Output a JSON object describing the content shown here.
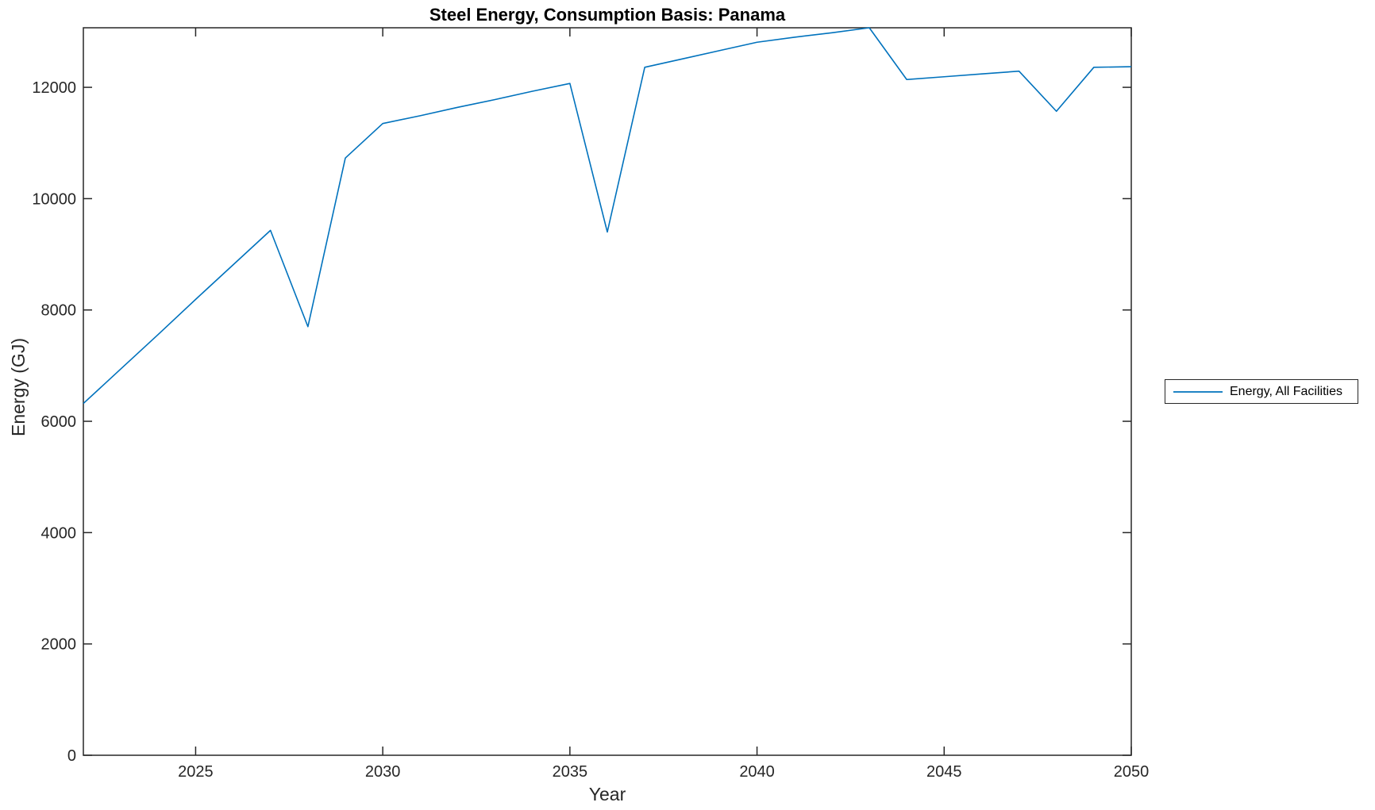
{
  "figure": {
    "title": "Steel Energy, Consumption Basis: Panama",
    "xlabel": "Year",
    "ylabel": "Energy (GJ)"
  },
  "legend": {
    "items": [
      {
        "label": "Energy, All Facilities",
        "color": "#0072BD"
      }
    ],
    "position": "outside-right",
    "border_color": "#262626"
  },
  "chart_data": {
    "type": "line",
    "title": "Steel Energy, Consumption Basis: Panama",
    "xlabel": "Year",
    "ylabel": "Energy (GJ)",
    "xlim": [
      2022,
      2050
    ],
    "ylim": [
      0,
      13070
    ],
    "x_ticks": [
      2025,
      2030,
      2035,
      2040,
      2045,
      2050
    ],
    "y_ticks": [
      0,
      2000,
      4000,
      6000,
      8000,
      10000,
      12000
    ],
    "grid": false,
    "box": true,
    "tick_direction": "in",
    "axis_color": "#262626",
    "legend_position": "outside-right",
    "series": [
      {
        "name": "Energy, All Facilities",
        "color": "#0072BD",
        "x": [
          2022,
          2023,
          2024,
          2025,
          2026,
          2027,
          2028,
          2029,
          2030,
          2031,
          2032,
          2033,
          2034,
          2035,
          2036,
          2037,
          2038,
          2039,
          2040,
          2041,
          2042,
          2043,
          2044,
          2045,
          2046,
          2047,
          2048,
          2049,
          2050
        ],
        "values": [
          6320,
          6940,
          7560,
          8190,
          8810,
          9430,
          7700,
          10730,
          11350,
          11490,
          11640,
          11780,
          11930,
          12070,
          9400,
          12360,
          12510,
          12660,
          12810,
          12900,
          12980,
          13070,
          12140,
          12190,
          12240,
          12290,
          11570,
          12360,
          12370
        ]
      }
    ]
  }
}
